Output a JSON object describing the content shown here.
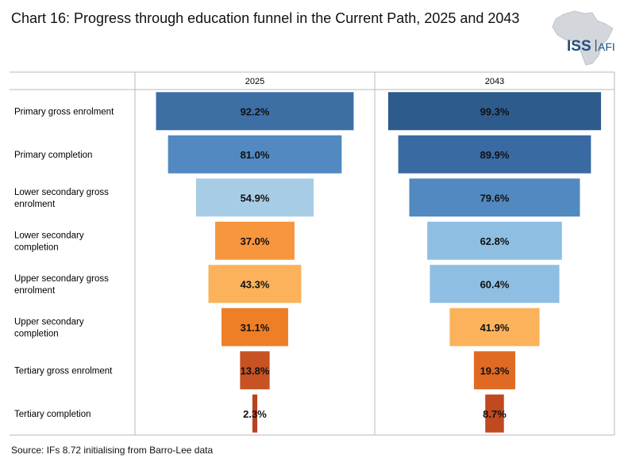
{
  "title": "Chart 16: Progress through education funnel in the Current Path, 2025 and 2043",
  "source": "Source: IFs 8.72 initialising from Barro-Lee data",
  "logo": {
    "text_main": "ISS",
    "text_sub": "AFI",
    "icon": "africa-map-icon"
  },
  "chart_data": {
    "type": "bar",
    "subtype": "funnel",
    "categories": [
      "Primary gross enrolment",
      "Primary completion",
      "Lower secondary gross enrolment",
      "Lower secondary completion",
      "Upper secondary gross enrolment",
      "Upper secondary completion",
      "Tertiary gross enrolment",
      "Tertiary completion"
    ],
    "series": [
      {
        "name": "2025",
        "values": [
          92.2,
          81.0,
          54.9,
          37.0,
          43.3,
          31.1,
          13.8,
          2.3
        ],
        "labels": [
          "92.2%",
          "81.0%",
          "54.9%",
          "37.0%",
          "43.3%",
          "31.1%",
          "13.8%",
          "2.3%"
        ],
        "colors": [
          "#3d6fa5",
          "#5289c0",
          "#a7cde6",
          "#f7963c",
          "#fbb25a",
          "#ee7f27",
          "#c75223",
          "#b84320"
        ]
      },
      {
        "name": "2043",
        "values": [
          99.3,
          89.9,
          79.6,
          62.8,
          60.4,
          41.9,
          19.3,
          8.7
        ],
        "labels": [
          "99.3%",
          "89.9%",
          "79.6%",
          "62.8%",
          "60.4%",
          "41.9%",
          "19.3%",
          "8.7%"
        ],
        "colors": [
          "#2c5b8c",
          "#396aa2",
          "#5289c0",
          "#8ebfe3",
          "#8ebfe3",
          "#fbb25a",
          "#e06a23",
          "#c0491f"
        ]
      }
    ],
    "xlim": [
      0,
      100
    ],
    "grid": false,
    "legend": "none"
  }
}
